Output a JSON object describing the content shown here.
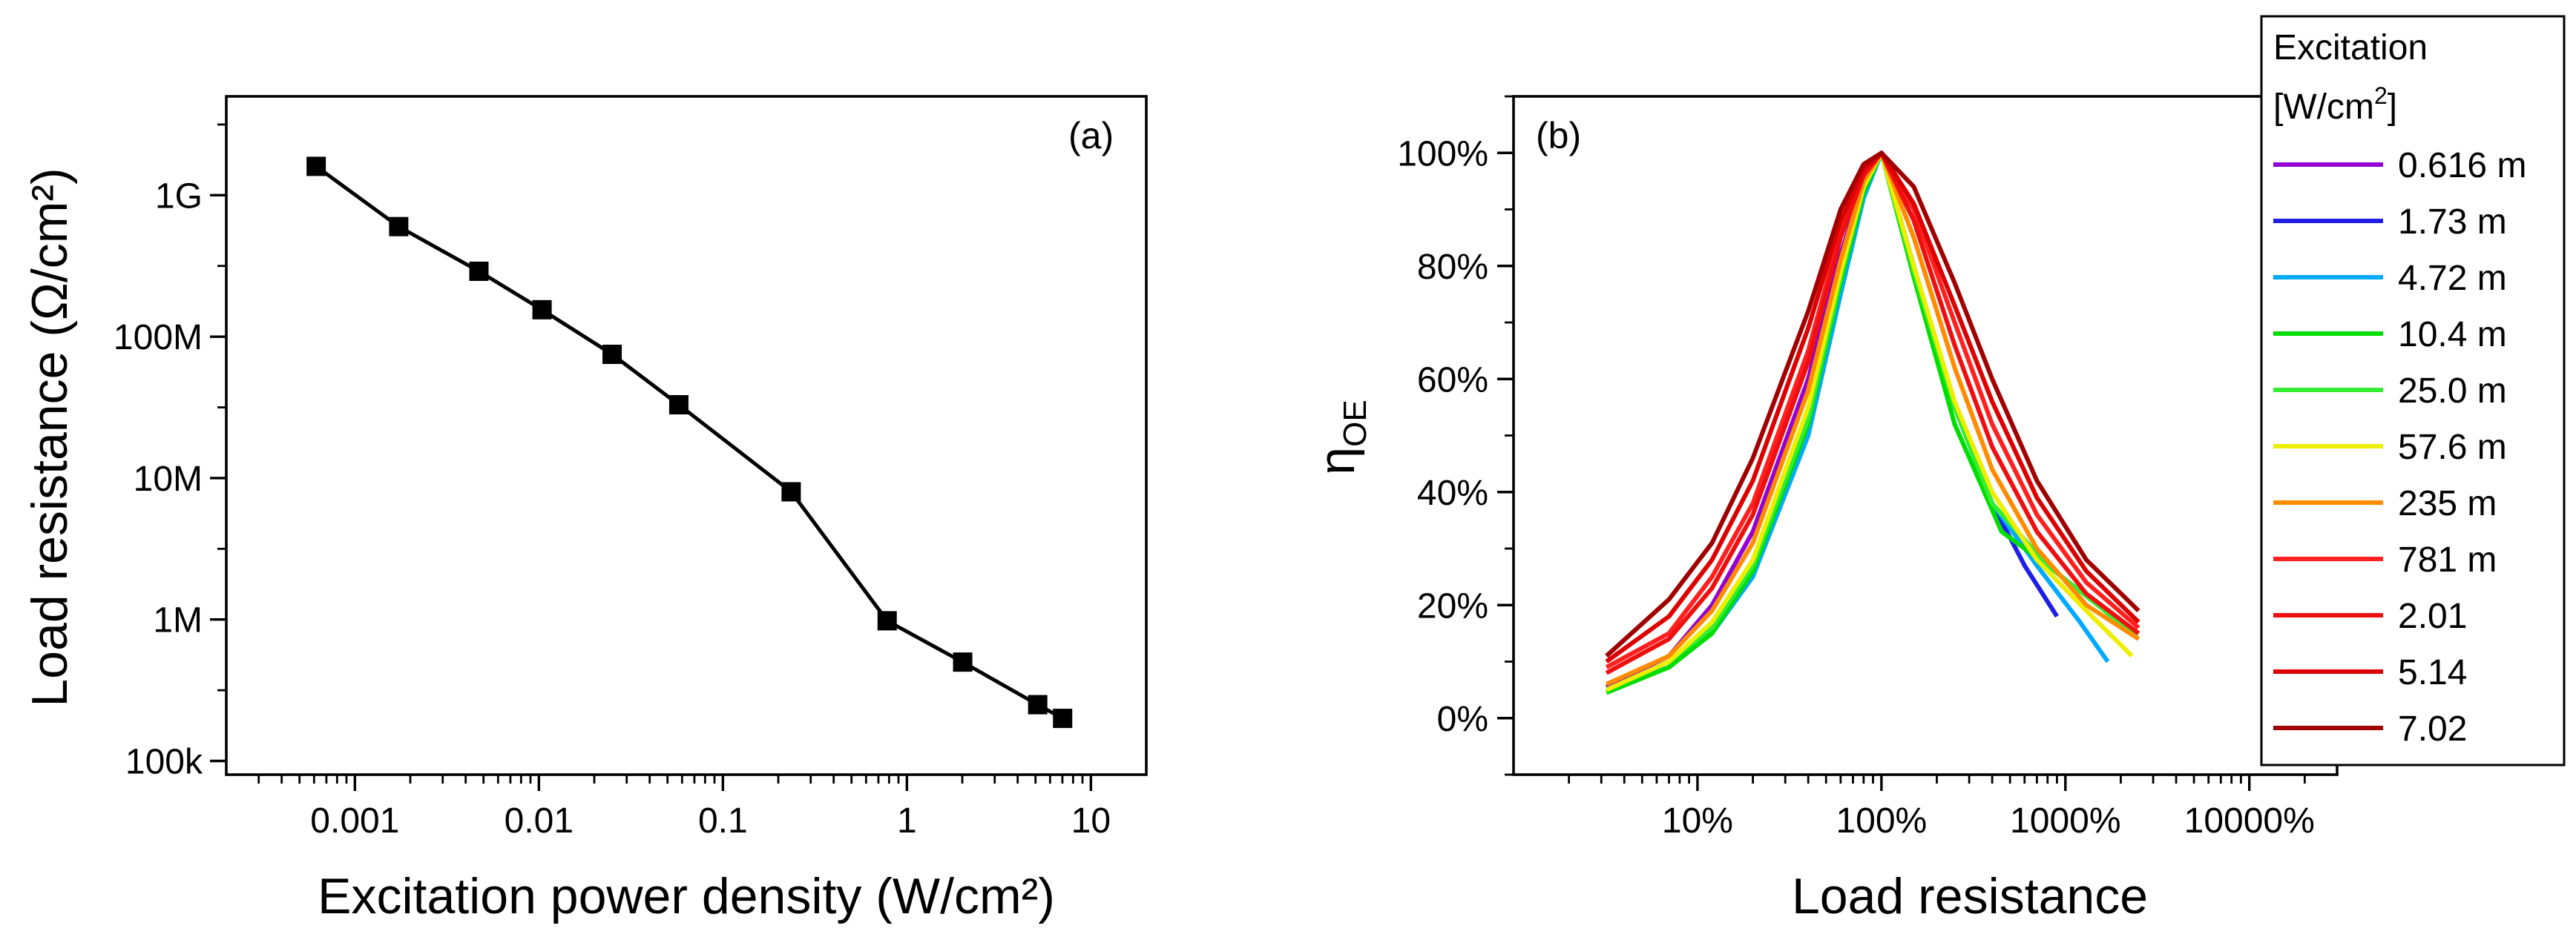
{
  "chart_data": [
    {
      "panel": "(a)",
      "type": "line",
      "marker": "square",
      "xscale": "log",
      "yscale": "log",
      "xlabel": "Excitation power density (W/cm²)",
      "ylabel": "Load resistance (Ω/cm²)",
      "xlim": [
        0.0002,
        20
      ],
      "ylim": [
        80000,
        5000000000
      ],
      "xticks": [
        0.001,
        0.01,
        0.1,
        1,
        10
      ],
      "xtick_labels": [
        "0.001",
        "0.01",
        "0.1",
        "1",
        "10"
      ],
      "yticks": [
        100000,
        1000000,
        10000000,
        100000000,
        1000000000
      ],
      "ytick_labels": [
        "100k",
        "1M",
        "10M",
        "100M",
        "1G"
      ],
      "x": [
        0.000616,
        0.00173,
        0.00472,
        0.0104,
        0.025,
        0.0576,
        0.235,
        0.781,
        2.01,
        5.14,
        7.02
      ],
      "y": [
        1600000000,
        600000000,
        290000000,
        155000000,
        75000000,
        33000000,
        8000000,
        980000,
        500000,
        250000,
        200000
      ],
      "color": "#000000"
    },
    {
      "panel": "(b)",
      "type": "line",
      "xscale": "log",
      "xlabel": "Load resistance",
      "ylabel": "η",
      "ylabel_sub": "OE",
      "xlim": [
        1,
        30000
      ],
      "ylim": [
        -0.1,
        1.1
      ],
      "xticks": [
        10,
        100,
        1000,
        10000
      ],
      "xtick_labels": [
        "10%",
        "100%",
        "1000%",
        "10000%"
      ],
      "yticks": [
        0,
        0.2,
        0.4,
        0.6,
        0.8,
        1.0
      ],
      "ytick_labels": [
        "0%",
        "20%",
        "40%",
        "60%",
        "80%",
        "100%"
      ],
      "legend": {
        "title_line1": "Excitation",
        "title_line2_prefix": "[W/cm",
        "title_line2_sup": "2",
        "title_line2_suffix": "]",
        "position": "right"
      },
      "series": [
        {
          "name": "0.616 m",
          "color": "#9400D3",
          "x": [
            3.2,
            7,
            12,
            20,
            40,
            60,
            80,
            100
          ],
          "y": [
            0.055,
            0.11,
            0.2,
            0.33,
            0.6,
            0.82,
            0.95,
            1.0
          ]
        },
        {
          "name": "1.73 m",
          "color": "#1E1EE6",
          "x": [
            100,
            150,
            250,
            400,
            600,
            900
          ],
          "y": [
            1.0,
            0.8,
            0.55,
            0.38,
            0.27,
            0.18
          ]
        },
        {
          "name": "4.72 m",
          "color": "#00AAFF",
          "x": [
            3.2,
            7,
            12,
            20,
            40,
            60,
            80,
            100,
            150,
            250,
            400,
            700,
            1200,
            1700
          ],
          "y": [
            0.05,
            0.09,
            0.15,
            0.25,
            0.5,
            0.75,
            0.92,
            1.0,
            0.8,
            0.55,
            0.38,
            0.27,
            0.17,
            0.1
          ]
        },
        {
          "name": "10.4 m",
          "color": "#00DD00",
          "x": [
            3.2,
            7,
            12,
            20,
            40,
            60,
            80,
            100,
            150,
            250,
            450,
            800,
            1500,
            2500
          ],
          "y": [
            0.045,
            0.09,
            0.15,
            0.26,
            0.52,
            0.77,
            0.93,
            1.0,
            0.78,
            0.52,
            0.33,
            0.27,
            0.2,
            0.15
          ]
        },
        {
          "name": "25.0 m",
          "color": "#33EE33",
          "x": [
            3.2,
            7,
            12,
            20,
            40,
            60,
            80,
            100,
            150,
            250,
            400,
            800,
            1500,
            2500
          ],
          "y": [
            0.05,
            0.1,
            0.16,
            0.27,
            0.53,
            0.78,
            0.94,
            1.0,
            0.79,
            0.55,
            0.38,
            0.27,
            0.2,
            0.14
          ]
        },
        {
          "name": "57.6 m",
          "color": "#EEEE00",
          "x": [
            3.2,
            7,
            12,
            20,
            40,
            60,
            80,
            100,
            150,
            250,
            400,
            700,
            1300,
            2300
          ],
          "y": [
            0.05,
            0.1,
            0.17,
            0.28,
            0.55,
            0.79,
            0.94,
            1.0,
            0.8,
            0.56,
            0.4,
            0.28,
            0.19,
            0.11
          ]
        },
        {
          "name": "235 m",
          "color": "#FF8C00",
          "x": [
            3.2,
            7,
            12,
            20,
            40,
            60,
            80,
            100,
            150,
            250,
            400,
            700,
            1300,
            2500
          ],
          "y": [
            0.06,
            0.11,
            0.19,
            0.31,
            0.58,
            0.81,
            0.95,
            1.0,
            0.85,
            0.62,
            0.44,
            0.3,
            0.2,
            0.14
          ]
        },
        {
          "name": "781 m",
          "color": "#FF2020",
          "x": [
            3.2,
            7,
            12,
            20,
            40,
            60,
            80,
            100,
            150,
            250,
            400,
            700,
            1300,
            2500
          ],
          "y": [
            0.09,
            0.15,
            0.25,
            0.38,
            0.65,
            0.86,
            0.97,
            1.0,
            0.9,
            0.7,
            0.52,
            0.36,
            0.24,
            0.16
          ]
        },
        {
          "name": "2.01",
          "color": "#EE1010",
          "x": [
            3.2,
            7,
            12,
            20,
            40,
            60,
            80,
            100,
            150,
            250,
            400,
            700,
            1300,
            2500
          ],
          "y": [
            0.08,
            0.14,
            0.23,
            0.36,
            0.63,
            0.85,
            0.96,
            1.0,
            0.88,
            0.66,
            0.48,
            0.33,
            0.22,
            0.15
          ]
        },
        {
          "name": "5.14",
          "color": "#DD0000",
          "x": [
            3.2,
            7,
            12,
            20,
            40,
            60,
            80,
            100,
            150,
            250,
            400,
            700,
            1300,
            2500
          ],
          "y": [
            0.1,
            0.18,
            0.28,
            0.42,
            0.69,
            0.88,
            0.97,
            1.0,
            0.91,
            0.73,
            0.56,
            0.39,
            0.26,
            0.17
          ]
        },
        {
          "name": "7.02",
          "color": "#A00000",
          "x": [
            3.2,
            7,
            12,
            20,
            40,
            60,
            80,
            100,
            150,
            250,
            400,
            700,
            1300,
            2500
          ],
          "y": [
            0.11,
            0.21,
            0.31,
            0.46,
            0.72,
            0.9,
            0.98,
            1.0,
            0.94,
            0.77,
            0.6,
            0.42,
            0.28,
            0.19
          ]
        }
      ]
    }
  ]
}
